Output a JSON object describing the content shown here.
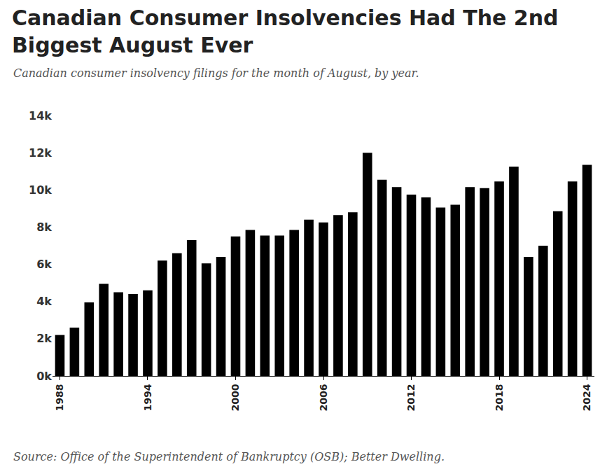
{
  "chart_data": {
    "type": "bar",
    "title": "Canadian Consumer Insolvencies Had The 2nd Biggest August Ever",
    "subtitle": "Canadian consumer insolvency filings for the month of August, by year.",
    "source": "Source: Office of the Superintendent of Bankruptcy (OSB); Better Dwelling.",
    "x": [
      1988,
      1989,
      1990,
      1991,
      1992,
      1993,
      1994,
      1995,
      1996,
      1997,
      1998,
      1999,
      2000,
      2001,
      2002,
      2003,
      2004,
      2005,
      2006,
      2007,
      2008,
      2009,
      2010,
      2011,
      2012,
      2013,
      2014,
      2015,
      2016,
      2017,
      2018,
      2019,
      2020,
      2021,
      2022,
      2023,
      2024
    ],
    "values": [
      2200,
      2600,
      3950,
      4950,
      4500,
      4400,
      4600,
      6200,
      6600,
      7300,
      6050,
      6400,
      7500,
      7850,
      7550,
      7550,
      7850,
      8400,
      8250,
      8650,
      8800,
      12000,
      10550,
      10150,
      9750,
      9600,
      9050,
      9200,
      10150,
      10100,
      10450,
      11250,
      6400,
      7000,
      8850,
      10450,
      11350
    ],
    "color": "#000000",
    "xlim": [
      1987.5,
      2024.5
    ],
    "xticks": [
      1988,
      1994,
      2000,
      2006,
      2012,
      2018,
      2024
    ],
    "ylim": [
      0,
      14000
    ],
    "yticks": [
      {
        "value": 0,
        "label": "0k"
      },
      {
        "value": 2000,
        "label": "2k"
      },
      {
        "value": 4000,
        "label": "4k"
      },
      {
        "value": 6000,
        "label": "6k"
      },
      {
        "value": 8000,
        "label": "8k"
      },
      {
        "value": 10000,
        "label": "10k"
      },
      {
        "value": 12000,
        "label": "12k"
      },
      {
        "value": 14000,
        "label": "14k"
      }
    ],
    "grid": false
  }
}
